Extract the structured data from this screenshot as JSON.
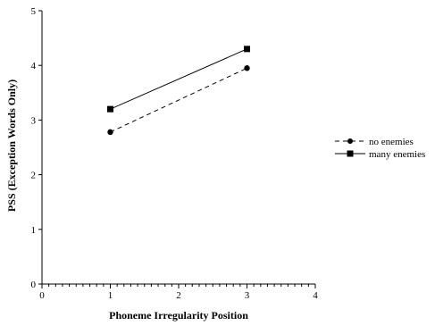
{
  "chart_data": {
    "type": "line",
    "title": "",
    "xlabel": "Phoneme Irregularity Position",
    "ylabel": "PSS (Exception Words Only)",
    "xlim": [
      0,
      4
    ],
    "ylim": [
      0,
      5
    ],
    "xticks": [
      "0",
      "1",
      "2",
      "3",
      "4"
    ],
    "yticks": [
      "0",
      "1",
      "2",
      "3",
      "4",
      "5"
    ],
    "grid": false,
    "legend_position": "right",
    "series": [
      {
        "name": "no enemies",
        "x": [
          1,
          3
        ],
        "y": [
          2.78,
          3.95
        ],
        "line_style": "dashed",
        "marker": "circle",
        "color": "#000000"
      },
      {
        "name": "many enemies",
        "x": [
          1,
          3
        ],
        "y": [
          3.2,
          4.3
        ],
        "line_style": "solid",
        "marker": "square",
        "color": "#000000"
      }
    ]
  }
}
